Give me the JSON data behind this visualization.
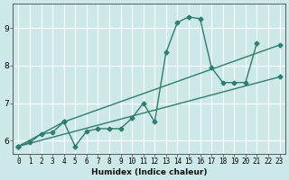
{
  "title": "",
  "xlabel": "Humidex (Indice chaleur)",
  "ylabel": "",
  "background_color": "#cde8e8",
  "grid_color": "#ffffff",
  "line_color": "#2e7d6e",
  "marker": "D",
  "markersize": 2.5,
  "linewidth": 1.0,
  "xlim": [
    -0.5,
    23.5
  ],
  "ylim": [
    5.65,
    9.65
  ],
  "yticks": [
    6,
    7,
    8,
    9
  ],
  "xticks": [
    0,
    1,
    2,
    3,
    4,
    5,
    6,
    7,
    8,
    9,
    10,
    11,
    12,
    13,
    14,
    15,
    16,
    17,
    18,
    19,
    20,
    21,
    22,
    23
  ],
  "series": [
    [
      5.85,
      5.95,
      6.18,
      6.22,
      6.5,
      5.85,
      6.25,
      6.32,
      6.32,
      6.32,
      6.6,
      7.0,
      6.5,
      8.35,
      9.15,
      9.3,
      9.25,
      7.95,
      7.55,
      7.55,
      7.55,
      8.6,
      null,
      null
    ],
    [
      5.85,
      null,
      null,
      null,
      6.5,
      null,
      null,
      null,
      null,
      null,
      null,
      null,
      null,
      null,
      null,
      null,
      null,
      null,
      null,
      null,
      null,
      null,
      null,
      8.55
    ],
    [
      5.85,
      null,
      null,
      null,
      null,
      null,
      null,
      null,
      null,
      null,
      null,
      null,
      null,
      null,
      null,
      null,
      null,
      null,
      null,
      null,
      null,
      null,
      null,
      7.7
    ]
  ]
}
